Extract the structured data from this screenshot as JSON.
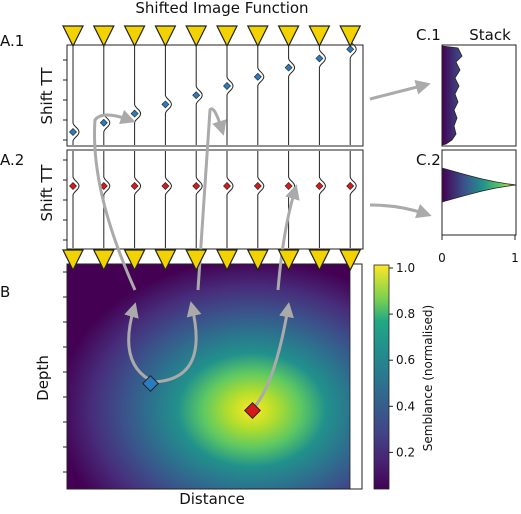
{
  "title": "Shifted Image Function",
  "stack_title": "Stack",
  "panels": {
    "a1": "A.1",
    "a2": "A.2",
    "b": "B",
    "c1": "C.1",
    "c2": "C.2"
  },
  "axes": {
    "a1_ylabel": "Shift TT",
    "a2_ylabel": "Shift TT",
    "b_ylabel": "Depth",
    "b_xlabel": "Distance",
    "c_tick_min": "0",
    "c_tick_max": "1"
  },
  "colorbar": {
    "label": "Semblance (normalised)",
    "ticks": [
      "1.0",
      "0.8",
      "0.6",
      "0.4",
      "0.2"
    ]
  },
  "colors": {
    "triangle": "#f2d200",
    "triangle_stroke": "#222222",
    "blue_source": "#2a7bbf",
    "red_source": "#d7191c",
    "arrow": "#aaaaaa"
  },
  "stations": {
    "count": 10
  },
  "chart_data": {
    "type": "heatmap",
    "colormap": "viridis",
    "value_range": [
      0,
      1
    ],
    "colorbar_ticks": [
      0.2,
      0.4,
      0.6,
      0.8,
      1.0
    ],
    "peak_location": "red diamond",
    "secondary_location": "blue diamond"
  }
}
